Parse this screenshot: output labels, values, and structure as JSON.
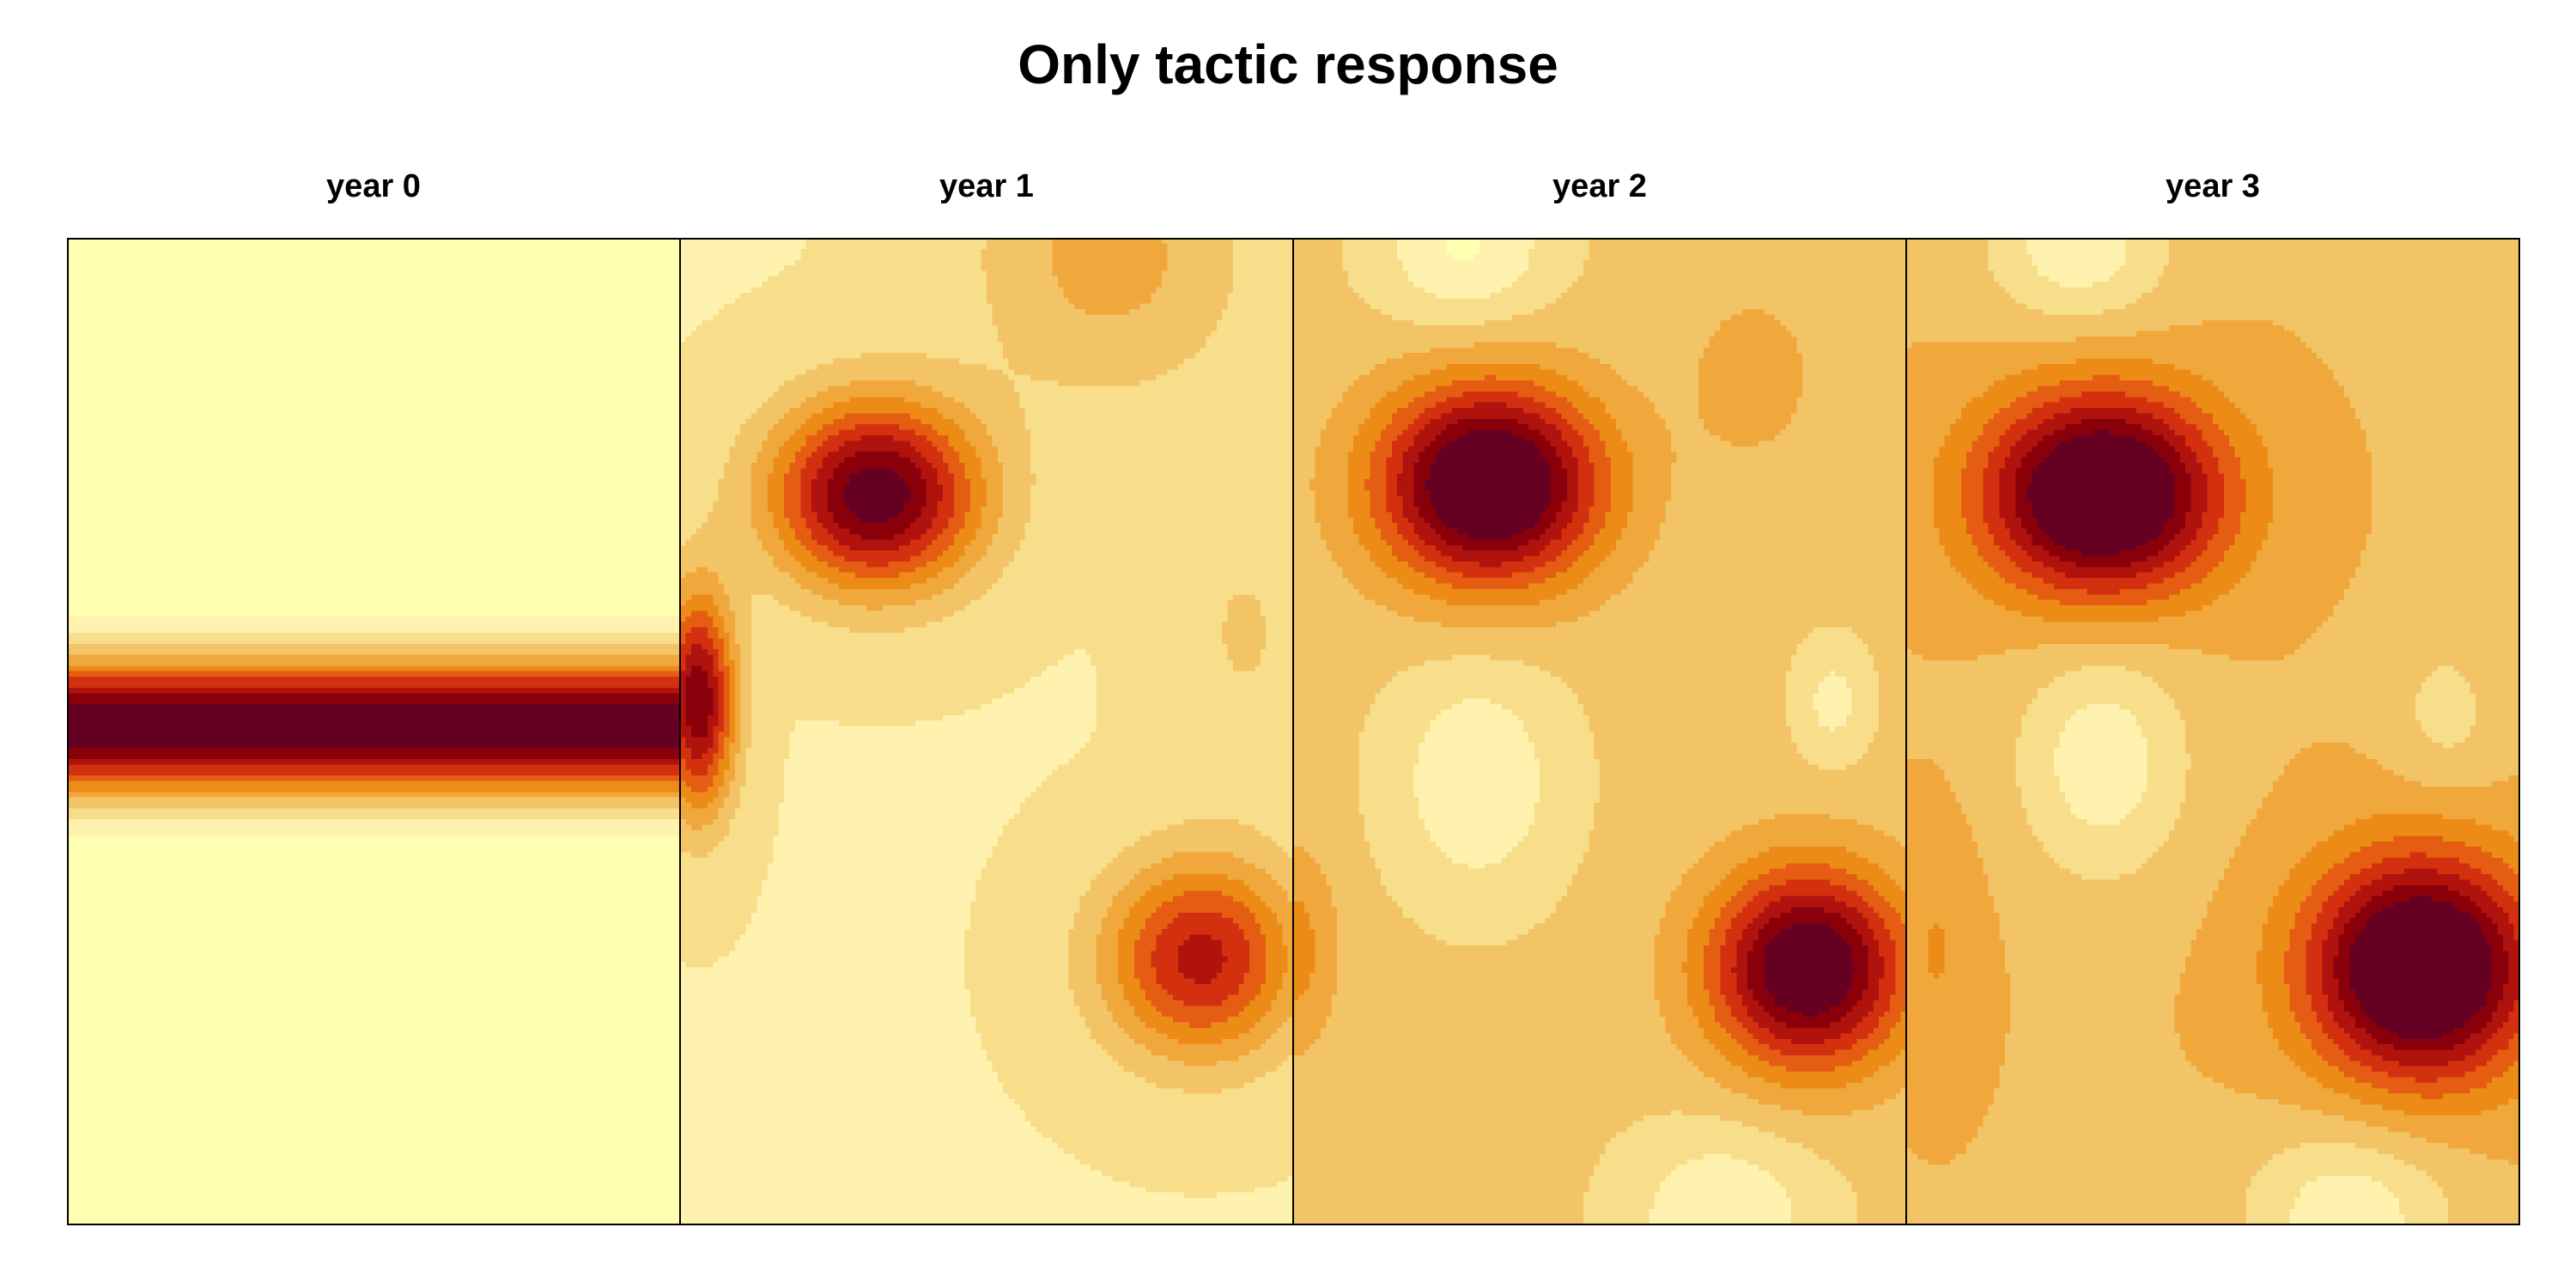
{
  "title": "Only tactic response",
  "chart_data": {
    "type": "heatmap",
    "title": "Only tactic response",
    "panels": [
      {
        "label": "year 0",
        "field": "band",
        "band_center_y": 0.495,
        "band_width": 0.072
      },
      {
        "label": "year 1",
        "field": "blobs",
        "base": 0.18,
        "blobs": [
          {
            "x": 0.32,
            "y": 0.26,
            "amp": 0.8,
            "sx": 0.17,
            "sy": 0.095
          },
          {
            "x": 0.85,
            "y": 0.73,
            "amp": 0.58,
            "sx": 0.16,
            "sy": 0.1
          },
          {
            "x": 0.03,
            "y": 0.47,
            "amp": 0.72,
            "sx": 0.06,
            "sy": 0.11
          },
          {
            "x": 0.7,
            "y": 0.02,
            "amp": 0.22,
            "sx": 0.22,
            "sy": 0.14
          },
          {
            "x": 0.92,
            "y": 0.4,
            "amp": 0.1,
            "sx": 0.12,
            "sy": 0.15
          }
        ]
      },
      {
        "label": "year 2",
        "field": "blobs",
        "base": 0.3,
        "blobs": [
          {
            "x": 0.32,
            "y": 0.25,
            "amp": 0.84,
            "sx": 0.18,
            "sy": 0.1
          },
          {
            "x": 0.84,
            "y": 0.74,
            "amp": 0.76,
            "sx": 0.16,
            "sy": 0.1
          },
          {
            "x": 0.3,
            "y": 0.55,
            "amp": -0.2,
            "sx": 0.14,
            "sy": 0.12
          },
          {
            "x": 0.28,
            "y": 0.01,
            "amp": -0.22,
            "sx": 0.14,
            "sy": 0.08
          },
          {
            "x": 0.7,
            "y": 0.99,
            "amp": -0.2,
            "sx": 0.16,
            "sy": 0.09
          },
          {
            "x": 0.88,
            "y": 0.47,
            "amp": -0.15,
            "sx": 0.06,
            "sy": 0.06
          },
          {
            "x": 0.75,
            "y": 0.14,
            "amp": 0.1,
            "sx": 0.12,
            "sy": 0.1
          },
          {
            "x": 0.0,
            "y": 0.72,
            "amp": 0.2,
            "sx": 0.07,
            "sy": 0.1
          }
        ]
      },
      {
        "label": "year 3",
        "field": "blobs",
        "base": 0.36,
        "blobs": [
          {
            "x": 0.32,
            "y": 0.26,
            "amp": 0.82,
            "sx": 0.19,
            "sy": 0.1
          },
          {
            "x": 0.84,
            "y": 0.74,
            "amp": 0.84,
            "sx": 0.18,
            "sy": 0.11
          },
          {
            "x": 0.32,
            "y": 0.53,
            "amp": -0.24,
            "sx": 0.14,
            "sy": 0.12
          },
          {
            "x": 0.28,
            "y": 0.01,
            "amp": -0.24,
            "sx": 0.15,
            "sy": 0.08
          },
          {
            "x": 0.72,
            "y": 0.99,
            "amp": -0.24,
            "sx": 0.17,
            "sy": 0.09
          },
          {
            "x": 0.88,
            "y": 0.48,
            "amp": -0.12,
            "sx": 0.09,
            "sy": 0.08
          },
          {
            "x": 0.05,
            "y": 0.72,
            "amp": 0.1,
            "sx": 0.07,
            "sy": 0.12
          }
        ]
      }
    ],
    "colors": [
      "#FFFFB2",
      "#FFF2AE",
      "#F8DD8A",
      "#F2C466",
      "#F0A83C",
      "#EC8B16",
      "#E55D12",
      "#D2300F",
      "#B0120E",
      "#8A000A",
      "#660022"
    ],
    "grid": false,
    "legend": "none"
  }
}
